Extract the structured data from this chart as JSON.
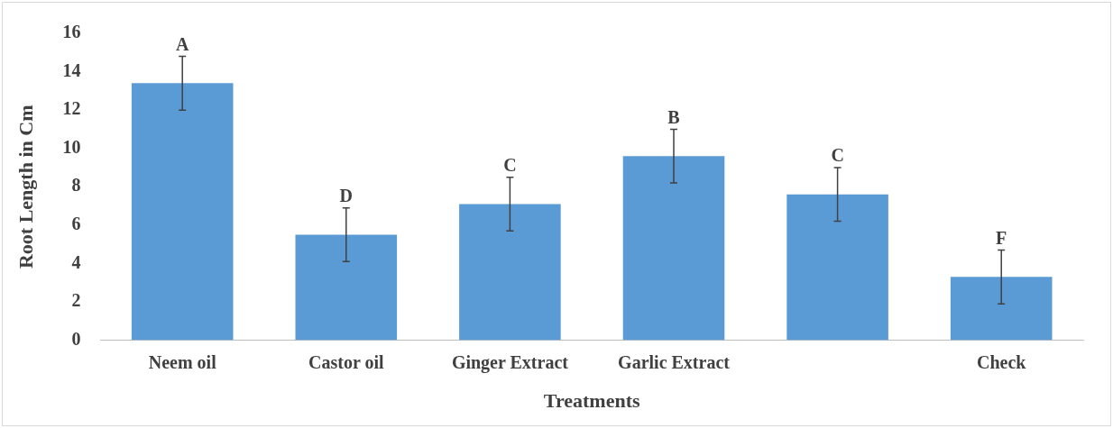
{
  "chart_data": {
    "type": "bar",
    "xlabel": "Treatments",
    "ylabel": "Root Length in Cm",
    "categories": [
      "Neem oil",
      "Castor oil",
      "Ginger Extract",
      "Garlic Extract",
      null,
      "Check"
    ],
    "values": [
      13.4,
      5.5,
      7.1,
      9.6,
      7.6,
      3.3
    ],
    "errors": [
      1.4,
      1.4,
      1.4,
      1.4,
      1.4,
      1.4
    ],
    "value_labels": [
      "A",
      "D",
      "C",
      "B",
      "C",
      "F"
    ],
    "color": "#5b9bd5",
    "ylim": [
      0,
      16
    ],
    "yticks": [
      0,
      2,
      4,
      6,
      8,
      10,
      12,
      14,
      16
    ],
    "grid": false
  }
}
